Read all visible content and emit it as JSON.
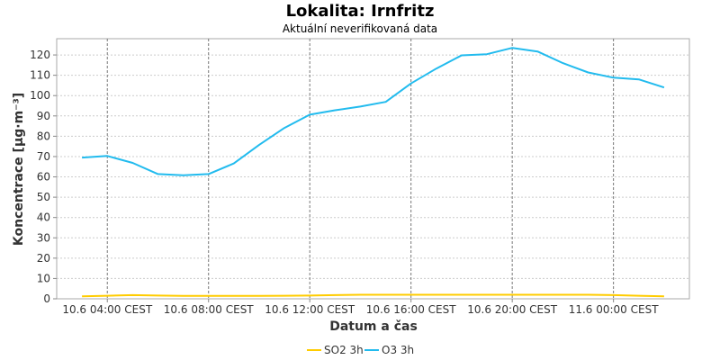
{
  "chart_data": {
    "type": "line",
    "title": "Lokalita: Irnfritz",
    "subtitle": "Aktuální neverifikovaná data",
    "xlabel": "Datum a čas",
    "ylabel": "Koncentrace [µg·m⁻³]",
    "ylim": [
      0,
      128
    ],
    "xlim": [
      "2023-06-10 02:00",
      "2023-06-11 03:00"
    ],
    "yticks": [
      0,
      10,
      20,
      30,
      40,
      50,
      60,
      70,
      80,
      90,
      100,
      110,
      120
    ],
    "xticks": [
      {
        "x": "2023-06-10 04:00",
        "label": "10.6 04:00 CEST"
      },
      {
        "x": "2023-06-10 08:00",
        "label": "10.6 08:00 CEST"
      },
      {
        "x": "2023-06-10 12:00",
        "label": "10.6 12:00 CEST"
      },
      {
        "x": "2023-06-10 16:00",
        "label": "10.6 16:00 CEST"
      },
      {
        "x": "2023-06-10 20:00",
        "label": "10.6 20:00 CEST"
      },
      {
        "x": "2023-06-11 00:00",
        "label": "11.6 00:00 CEST"
      }
    ],
    "grid": true,
    "legend_position": "bottom",
    "x": [
      "2023-06-10 03:00",
      "2023-06-10 04:00",
      "2023-06-10 05:00",
      "2023-06-10 06:00",
      "2023-06-10 07:00",
      "2023-06-10 08:00",
      "2023-06-10 09:00",
      "2023-06-10 10:00",
      "2023-06-10 11:00",
      "2023-06-10 12:00",
      "2023-06-10 13:00",
      "2023-06-10 14:00",
      "2023-06-10 15:00",
      "2023-06-10 16:00",
      "2023-06-10 17:00",
      "2023-06-10 18:00",
      "2023-06-10 19:00",
      "2023-06-10 20:00",
      "2023-06-10 21:00",
      "2023-06-10 22:00",
      "2023-06-10 23:00",
      "2023-06-11 00:00",
      "2023-06-11 01:00",
      "2023-06-11 02:00"
    ],
    "series": [
      {
        "name": "SO2 3h",
        "color": "#ffcc00",
        "values": [
          1.2,
          1.5,
          1.8,
          1.6,
          1.4,
          1.4,
          1.4,
          1.4,
          1.5,
          1.6,
          1.8,
          2.0,
          2.0,
          2.0,
          2.0,
          2.0,
          2.0,
          2.0,
          2.0,
          2.0,
          2.0,
          1.8,
          1.5,
          1.2
        ]
      },
      {
        "name": "O3 3h",
        "color": "#22bbee",
        "values": [
          69.5,
          70.3,
          66.9,
          61.4,
          60.8,
          61.4,
          66.6,
          75.8,
          84.1,
          90.6,
          92.8,
          94.6,
          96.9,
          106.0,
          113.3,
          119.8,
          120.4,
          123.5,
          121.7,
          116.0,
          111.4,
          108.8,
          108.0,
          104.0
        ]
      }
    ]
  }
}
